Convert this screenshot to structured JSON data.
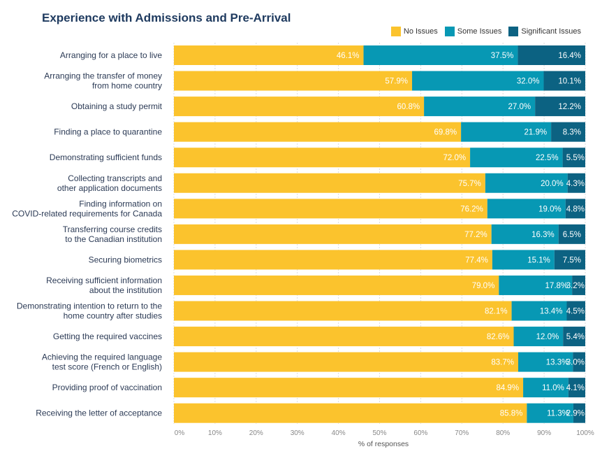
{
  "chart_data": {
    "type": "bar",
    "orientation": "horizontal",
    "stacked": true,
    "title": "Experience with Admissions and Pre-Arrival",
    "xlabel": "% of responses",
    "xlim": [
      0,
      100
    ],
    "xticks": [
      "0%",
      "10%",
      "20%",
      "30%",
      "40%",
      "50%",
      "60%",
      "70%",
      "80%",
      "90%",
      "100%"
    ],
    "legend_position": "top-right",
    "categories": [
      [
        "Arranging for a place to live"
      ],
      [
        "Arranging the transfer of money",
        "from home country"
      ],
      [
        "Obtaining a study permit"
      ],
      [
        "Finding a place to quarantine"
      ],
      [
        "Demonstrating sufficient funds"
      ],
      [
        "Collecting transcripts and",
        "other application documents"
      ],
      [
        "Finding information on",
        "COVID-related requirements for Canada"
      ],
      [
        "Transferring course credits",
        "to the Canadian institution"
      ],
      [
        "Securing biometrics"
      ],
      [
        "Receiving sufficient information",
        "about the institution"
      ],
      [
        "Demonstrating intention to return to the",
        "home country after studies"
      ],
      [
        "Getting the required vaccines"
      ],
      [
        "Achieving the required language",
        "test score (French or English)"
      ],
      [
        "Providing proof of vaccination"
      ],
      [
        "Receiving the letter of acceptance"
      ]
    ],
    "series": [
      {
        "name": "No Issues",
        "color": "#fbc32d",
        "values": [
          46.1,
          57.9,
          60.8,
          69.8,
          72.0,
          75.7,
          76.2,
          77.2,
          77.4,
          79.0,
          82.1,
          82.6,
          83.7,
          84.9,
          85.8
        ]
      },
      {
        "name": "Some Issues",
        "color": "#0798b4",
        "values": [
          37.5,
          32.0,
          27.0,
          21.9,
          22.5,
          20.0,
          19.0,
          16.3,
          15.1,
          17.8,
          13.4,
          12.0,
          13.3,
          11.0,
          11.3
        ]
      },
      {
        "name": "Significant Issues",
        "color": "#0c6282",
        "values": [
          16.4,
          10.1,
          12.2,
          8.3,
          5.5,
          4.3,
          4.8,
          6.5,
          7.5,
          3.2,
          4.5,
          5.4,
          3.0,
          4.1,
          2.9
        ]
      }
    ]
  }
}
